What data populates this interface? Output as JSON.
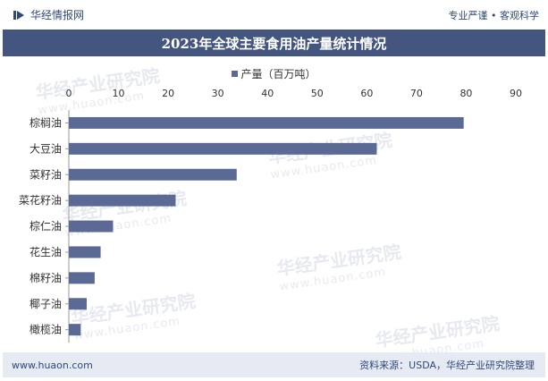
{
  "header": {
    "brand_name": "华经情报网",
    "slogan": "专业严谨 • 客观科学"
  },
  "watermark": {
    "text": "华经产业研究院",
    "url": "www.huaon.com"
  },
  "footer": {
    "website": "www.huaon.com",
    "source": "资料来源：USDA，华经产业研究院整理"
  },
  "colors": {
    "bar": "#5b6a94",
    "title_bg": "#44567f",
    "axis_text": "#333333"
  },
  "chart_data": {
    "type": "bar",
    "orientation": "horizontal",
    "title": "2023年全球主要食用油产量统计情况",
    "legend": [
      "产量（百万吨）"
    ],
    "legend_placement": "top",
    "categories": [
      "棕榈油",
      "大豆油",
      "菜籽油",
      "菜花籽油",
      "棕仁油",
      "花生油",
      "棉籽油",
      "椰子油",
      "橄榄油"
    ],
    "series": [
      {
        "name": "产量（百万吨）",
        "values": [
          79.5,
          62,
          33.8,
          21.5,
          8.9,
          6.4,
          5.2,
          3.6,
          2.4
        ]
      }
    ],
    "xlim": [
      0,
      90
    ],
    "xticks": [
      0,
      10,
      20,
      30,
      40,
      50,
      60,
      70,
      80,
      90
    ],
    "xlabel": "",
    "ylabel": "",
    "grid": false
  }
}
